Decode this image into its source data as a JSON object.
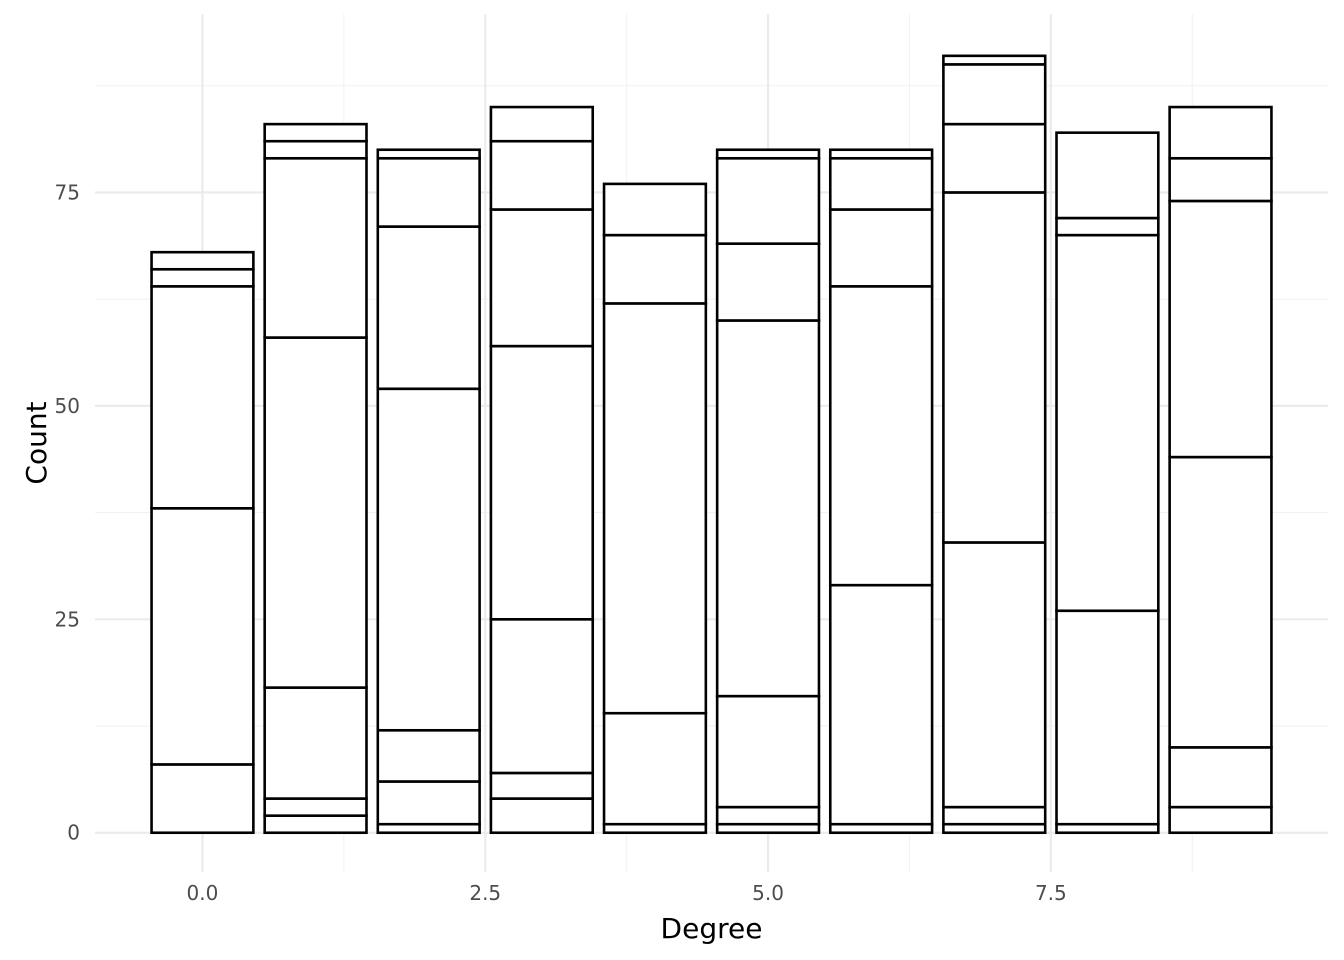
{
  "chart_data": {
    "type": "bar",
    "stacked": true,
    "xlabel": "Degree",
    "ylabel": "Count",
    "xlim": [
      -0.95,
      9.95
    ],
    "ylim": [
      -4.6,
      95.9
    ],
    "x_ticks": [
      0.0,
      2.5,
      5.0,
      7.5
    ],
    "x_tick_labels": [
      "0.0",
      "2.5",
      "5.0",
      "7.5"
    ],
    "y_ticks": [
      0,
      25,
      50,
      75
    ],
    "y_tick_labels": [
      "0",
      "25",
      "50",
      "75"
    ],
    "grid": true,
    "bar_fill": "#ffffff",
    "bar_outline": "#000000",
    "bars": [
      {
        "x": 0,
        "boundaries": [
          0,
          8,
          38,
          64,
          66,
          68
        ]
      },
      {
        "x": 1,
        "boundaries": [
          0,
          2,
          4,
          17,
          58,
          79,
          81,
          83
        ]
      },
      {
        "x": 2,
        "boundaries": [
          0,
          1,
          6,
          12,
          52,
          71,
          79,
          80
        ]
      },
      {
        "x": 3,
        "boundaries": [
          0,
          4,
          7,
          25,
          57,
          73,
          81,
          85
        ]
      },
      {
        "x": 4,
        "boundaries": [
          0,
          1,
          14,
          62,
          70,
          76
        ]
      },
      {
        "x": 5,
        "boundaries": [
          0,
          1,
          3,
          16,
          60,
          69,
          79,
          80
        ]
      },
      {
        "x": 6,
        "boundaries": [
          0,
          1,
          29,
          64,
          73,
          79,
          80
        ]
      },
      {
        "x": 7,
        "boundaries": [
          0,
          1,
          3,
          34,
          75,
          83,
          90,
          91
        ]
      },
      {
        "x": 8,
        "boundaries": [
          0,
          1,
          26,
          70,
          72,
          82
        ]
      },
      {
        "x": 9,
        "boundaries": [
          0,
          3,
          10,
          44,
          74,
          79,
          85
        ]
      }
    ]
  }
}
